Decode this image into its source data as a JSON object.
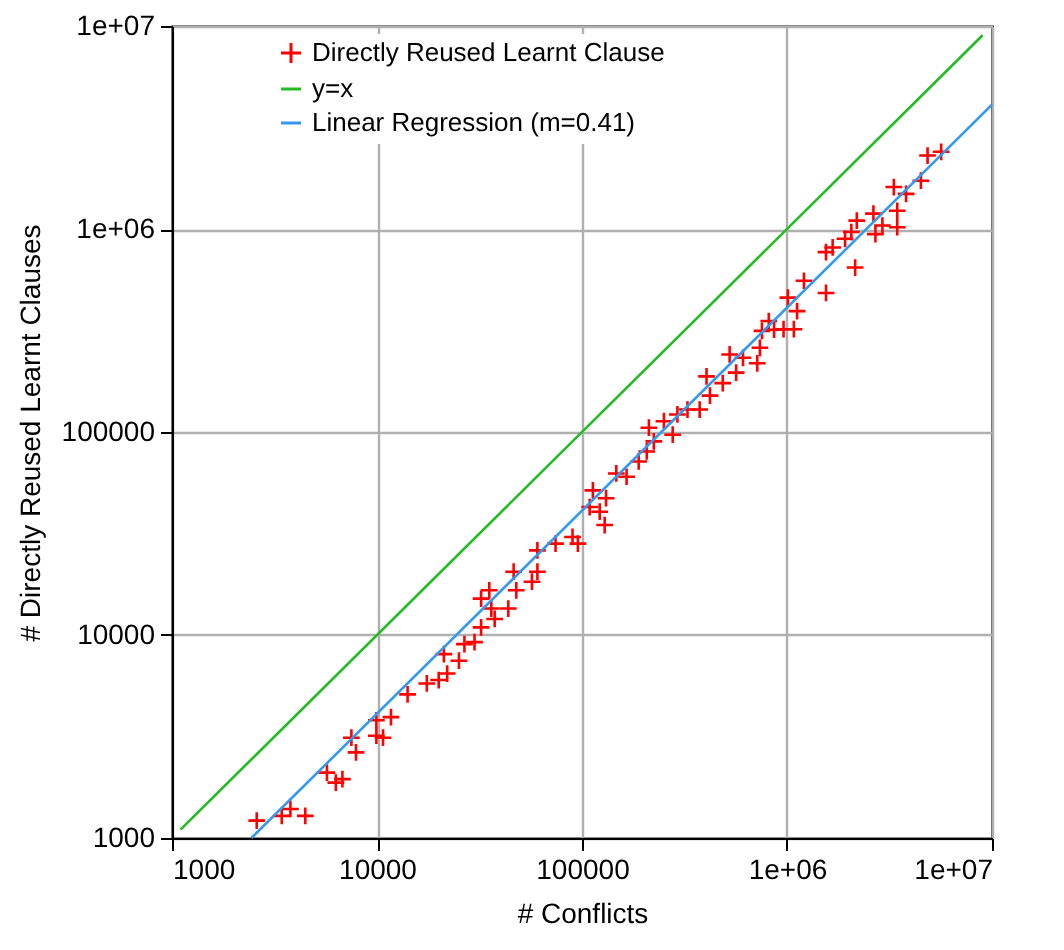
{
  "chart_data": {
    "type": "scatter",
    "xlabel": "# Conflicts",
    "ylabel": "# Directly Reused Learnt Clauses",
    "log": "xy",
    "grid": true,
    "legend": "top",
    "xlim": [
      1000,
      10000000
    ],
    "ylim": [
      1000,
      10000000
    ],
    "xticks": [
      {
        "value": 1000,
        "label": "1000"
      },
      {
        "value": 10000,
        "label": "10000"
      },
      {
        "value": 100000,
        "label": "100000"
      },
      {
        "value": 1000000,
        "label": "1e+06"
      },
      {
        "value": 10000000,
        "label": "1e+07"
      }
    ],
    "yticks": [
      {
        "value": 1000,
        "label": "1000"
      },
      {
        "value": 10000,
        "label": "10000"
      },
      {
        "value": 100000,
        "label": "100000"
      },
      {
        "value": 1000000,
        "label": "1e+06"
      },
      {
        "value": 10000000,
        "label": "1e+07"
      }
    ],
    "series": [
      {
        "name": "Directly Reused Learnt Clause",
        "type": "scatter",
        "marker": "cross",
        "color": "#ff0000",
        "x": [
          2590,
          3430,
          3780,
          4470,
          5700,
          6300,
          6780,
          7500,
          7900,
          9930,
          9930,
          10700,
          11700,
          14100,
          17500,
          20000,
          21200,
          22000,
          25100,
          26700,
          29900,
          32200,
          32200,
          35300,
          36100,
          37500,
          43700,
          46400,
          47800,
          57000,
          60600,
          60600,
          74300,
          89900,
          95500,
          113000,
          109000,
          122000,
          129000,
          131000,
          147000,
          165000,
          189000,
          207000,
          212000,
          224000,
          251000,
          277000,
          292000,
          327000,
          375000,
          405000,
          421000,
          486000,
          525000,
          565000,
          610000,
          716000,
          738000,
          755000,
          815000,
          865000,
          962000,
          1010000,
          1080000,
          1120000,
          1210000,
          1550000,
          1550000,
          1670000,
          1920000,
          2060000,
          2150000,
          2190000,
          2640000,
          2700000,
          2920000,
          3320000,
          3450000,
          3450000,
          3810000,
          4500000,
          4850000,
          5650000
        ],
        "values": [
          1218,
          1285,
          1390,
          1285,
          2100,
          1875,
          1950,
          3120,
          2640,
          3800,
          3190,
          3120,
          3940,
          5100,
          5770,
          6000,
          8050,
          6460,
          7470,
          9020,
          9220,
          10900,
          15100,
          16600,
          13500,
          12000,
          13500,
          20500,
          16600,
          18300,
          26100,
          20500,
          28200,
          30400,
          28200,
          51600,
          42700,
          40500,
          34800,
          47200,
          62500,
          60200,
          71600,
          80200,
          105000,
          89900,
          113000,
          97000,
          122000,
          129000,
          129000,
          188000,
          151000,
          174000,
          241000,
          196000,
          232000,
          218000,
          260000,
          315000,
          352000,
          319000,
          321000,
          459000,
          321000,
          394000,
          556000,
          769000,
          484000,
          811000,
          895000,
          966000,
          646000,
          1100000,
          1190000,
          944000,
          1040000,
          1610000,
          1230000,
          1020000,
          1490000,
          1730000,
          2300000,
          2400000
        ]
      },
      {
        "name": "y=x",
        "type": "line",
        "marker": "none",
        "line_style": "solid",
        "color": "#22bb22",
        "x": [
          1100,
          9000000
        ],
        "values": [
          1100,
          9000000
        ]
      },
      {
        "name": "Linear Regression (m=0.41)",
        "type": "line",
        "marker": "none",
        "line_style": "solid",
        "color": "#3399ee",
        "x": [
          2440,
          10000000
        ],
        "values": [
          1000,
          4100000
        ]
      }
    ]
  }
}
